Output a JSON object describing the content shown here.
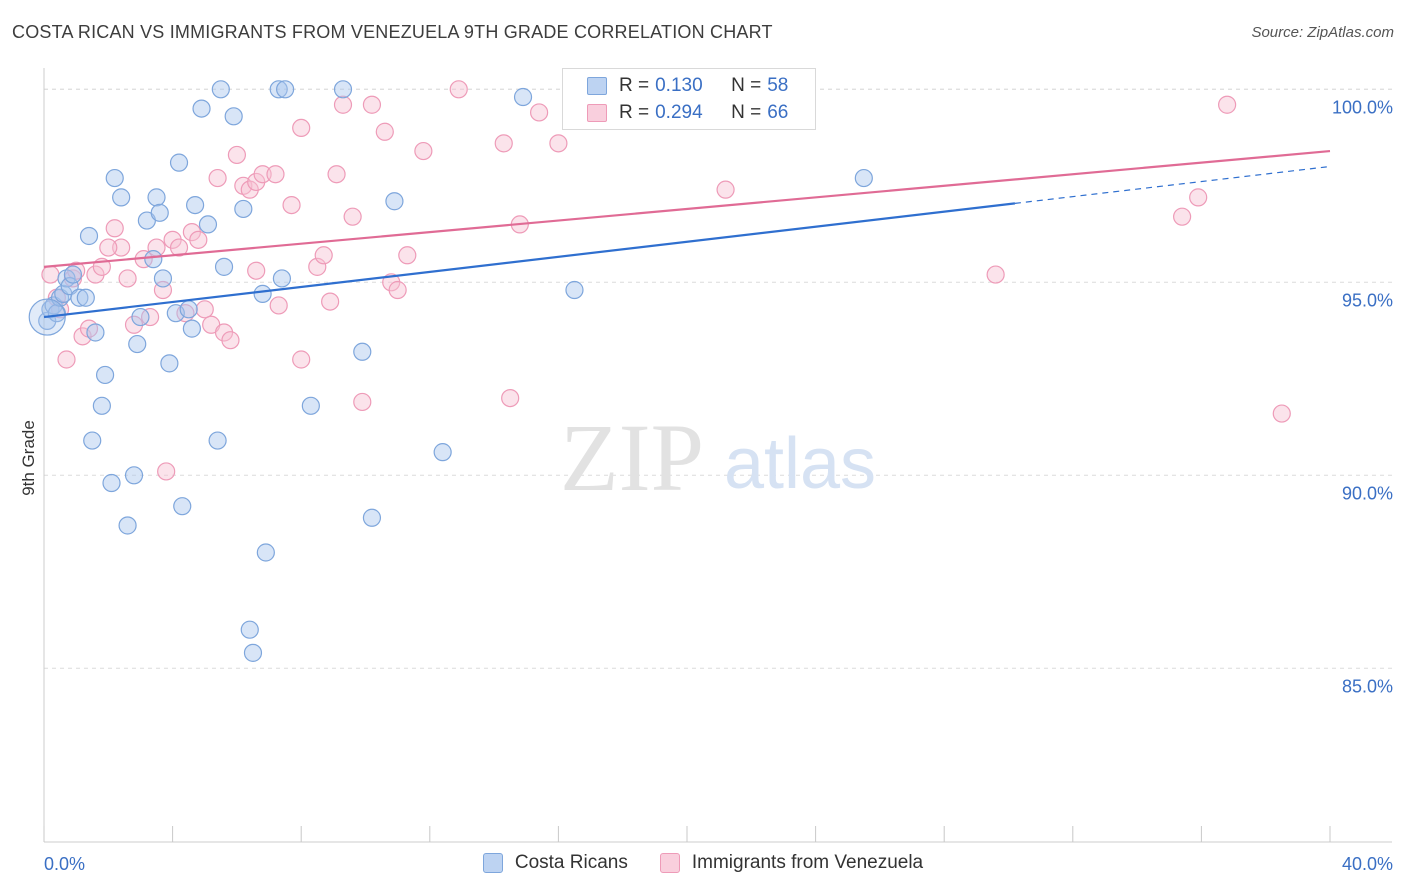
{
  "title": "COSTA RICAN VS IMMIGRANTS FROM VENEZUELA 9TH GRADE CORRELATION CHART",
  "source": "Source: ZipAtlas.com",
  "watermark": {
    "zip": "ZIP",
    "atlas": "atlas"
  },
  "colors": {
    "blue_fill": "#a9c6ee",
    "blue_stroke": "#7ea6dc",
    "blue_line": "#2f6fcf",
    "pink_fill": "#f6c0d2",
    "pink_stroke": "#ee9bb8",
    "pink_line": "#e06b95",
    "tick_label": "#3a6fc4",
    "grid": "#dcdcdc"
  },
  "legend": {
    "series1": {
      "r_label": "R =",
      "r_value": "0.130",
      "n_label": "N =",
      "n_value": "58"
    },
    "series2": {
      "r_label": "R =",
      "r_value": "0.294",
      "n_label": "N =",
      "n_value": "66"
    }
  },
  "bottom_legend": {
    "series1": "Costa Ricans",
    "series2": "Immigrants from Venezuela"
  },
  "chart_data": {
    "type": "scatter",
    "title": "COSTA RICAN VS IMMIGRANTS FROM VENEZUELA 9TH GRADE CORRELATION CHART",
    "xlabel": "",
    "ylabel": "9th Grade",
    "xlim": [
      0,
      40
    ],
    "ylim": [
      80.5,
      100.5
    ],
    "x_tick_labels": [
      "0.0%",
      "40.0%"
    ],
    "y_ticks": [
      85,
      90,
      95,
      100
    ],
    "y_tick_labels": [
      "85.0%",
      "90.0%",
      "95.0%",
      "100.0%"
    ],
    "grid": true,
    "legend_position": "top-center",
    "series": [
      {
        "name": "Costa Ricans",
        "r": 0.13,
        "n": 58,
        "trend": {
          "x0": 0,
          "y0": 94.1,
          "x1": 40,
          "y1": 98.0,
          "solid_until": 30.2
        },
        "points": [
          [
            0.1,
            94.0
          ],
          [
            0.2,
            94.3
          ],
          [
            0.3,
            94.4
          ],
          [
            0.4,
            94.2
          ],
          [
            0.5,
            94.6
          ],
          [
            0.6,
            94.7
          ],
          [
            0.7,
            95.1
          ],
          [
            0.8,
            94.9
          ],
          [
            0.9,
            95.2
          ],
          [
            1.1,
            94.6
          ],
          [
            1.3,
            94.6
          ],
          [
            1.4,
            96.2
          ],
          [
            1.5,
            90.9
          ],
          [
            1.6,
            93.7
          ],
          [
            1.8,
            91.8
          ],
          [
            1.9,
            92.6
          ],
          [
            2.1,
            89.8
          ],
          [
            2.2,
            97.7
          ],
          [
            2.4,
            97.2
          ],
          [
            2.6,
            88.7
          ],
          [
            2.8,
            90.0
          ],
          [
            2.9,
            93.4
          ],
          [
            3.0,
            94.1
          ],
          [
            3.2,
            96.6
          ],
          [
            3.4,
            95.6
          ],
          [
            3.5,
            97.2
          ],
          [
            3.6,
            96.8
          ],
          [
            3.7,
            95.1
          ],
          [
            3.9,
            92.9
          ],
          [
            4.1,
            94.2
          ],
          [
            4.2,
            98.1
          ],
          [
            4.3,
            89.2
          ],
          [
            4.5,
            94.3
          ],
          [
            4.6,
            93.8
          ],
          [
            4.7,
            97.0
          ],
          [
            4.9,
            99.5
          ],
          [
            5.1,
            96.5
          ],
          [
            5.4,
            90.9
          ],
          [
            5.6,
            95.4
          ],
          [
            5.5,
            100.0
          ],
          [
            5.9,
            99.3
          ],
          [
            6.2,
            96.9
          ],
          [
            6.4,
            86.0
          ],
          [
            6.5,
            85.4
          ],
          [
            6.8,
            94.7
          ],
          [
            6.9,
            88.0
          ],
          [
            7.4,
            95.1
          ],
          [
            7.3,
            100.0
          ],
          [
            7.5,
            100.0
          ],
          [
            8.3,
            91.8
          ],
          [
            9.3,
            100.0
          ],
          [
            9.9,
            93.2
          ],
          [
            10.2,
            88.9
          ],
          [
            10.9,
            97.1
          ],
          [
            12.4,
            90.6
          ],
          [
            14.9,
            99.8
          ],
          [
            16.5,
            94.8
          ],
          [
            25.5,
            97.7
          ]
        ]
      },
      {
        "name": "Immigrants from Venezuela",
        "r": 0.294,
        "n": 66,
        "trend": {
          "x0": 0,
          "y0": 95.4,
          "x1": 40,
          "y1": 98.4
        },
        "points": [
          [
            0.2,
            95.2
          ],
          [
            0.4,
            94.6
          ],
          [
            0.5,
            94.3
          ],
          [
            0.7,
            93.0
          ],
          [
            0.9,
            95.1
          ],
          [
            1.2,
            93.6
          ],
          [
            1.4,
            93.8
          ],
          [
            1.6,
            95.2
          ],
          [
            1.8,
            95.4
          ],
          [
            2.2,
            96.4
          ],
          [
            2.4,
            95.9
          ],
          [
            2.6,
            95.1
          ],
          [
            2.8,
            93.9
          ],
          [
            3.1,
            95.6
          ],
          [
            3.3,
            94.1
          ],
          [
            3.5,
            95.9
          ],
          [
            3.8,
            90.1
          ],
          [
            4.0,
            96.1
          ],
          [
            4.2,
            95.9
          ],
          [
            4.4,
            94.2
          ],
          [
            4.6,
            96.3
          ],
          [
            4.8,
            96.1
          ],
          [
            5.0,
            94.3
          ],
          [
            5.2,
            93.9
          ],
          [
            5.4,
            97.7
          ],
          [
            5.6,
            93.7
          ],
          [
            5.8,
            93.5
          ],
          [
            6.0,
            98.3
          ],
          [
            6.2,
            97.5
          ],
          [
            6.4,
            97.4
          ],
          [
            6.6,
            97.6
          ],
          [
            6.8,
            97.8
          ],
          [
            7.2,
            97.8
          ],
          [
            7.3,
            94.4
          ],
          [
            7.7,
            97.0
          ],
          [
            8.0,
            93.0
          ],
          [
            8.0,
            99.0
          ],
          [
            8.5,
            95.4
          ],
          [
            8.7,
            95.7
          ],
          [
            9.1,
            97.8
          ],
          [
            9.3,
            99.6
          ],
          [
            9.6,
            96.7
          ],
          [
            9.9,
            91.9
          ],
          [
            10.2,
            99.6
          ],
          [
            10.6,
            98.9
          ],
          [
            10.8,
            95.0
          ],
          [
            11.0,
            94.8
          ],
          [
            11.8,
            98.4
          ],
          [
            12.9,
            100.0
          ],
          [
            14.3,
            98.6
          ],
          [
            14.5,
            92.0
          ],
          [
            14.8,
            96.5
          ],
          [
            15.4,
            99.4
          ],
          [
            16.0,
            98.6
          ],
          [
            21.2,
            97.4
          ],
          [
            29.6,
            95.2
          ],
          [
            35.4,
            96.7
          ],
          [
            35.9,
            97.2
          ],
          [
            36.8,
            99.6
          ],
          [
            38.5,
            91.6
          ],
          [
            1.0,
            95.3
          ],
          [
            2.0,
            95.9
          ],
          [
            3.7,
            94.8
          ],
          [
            6.6,
            95.3
          ],
          [
            8.9,
            94.5
          ],
          [
            11.3,
            95.7
          ]
        ]
      }
    ]
  }
}
